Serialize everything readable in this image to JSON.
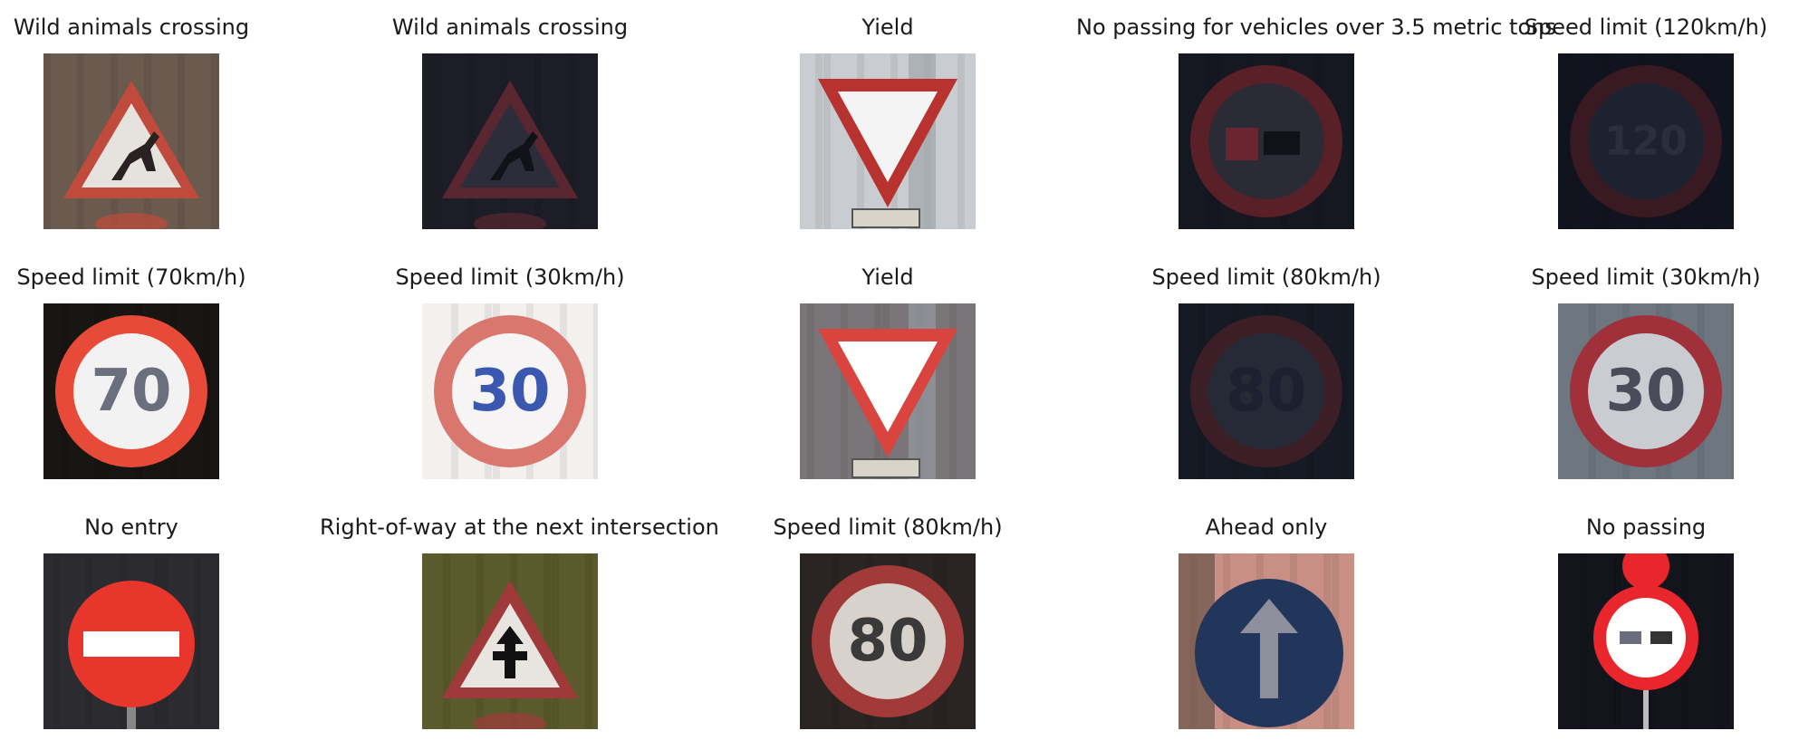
{
  "figure": {
    "cells": [
      {
        "title": "Wild animals crossing",
        "sign": "triangle-deer",
        "bg": "#6b5a4e",
        "sign_color": "#c04a3c",
        "inner_color": "#e6e3df",
        "glyph_color": "#2a2222",
        "dim": 1.0
      },
      {
        "title": "Wild animals crossing",
        "sign": "triangle-deer",
        "bg": "#1c1d26",
        "sign_color": "#5a2630",
        "inner_color": "#2c2d38",
        "glyph_color": "#111217",
        "dim": 1.0
      },
      {
        "title": "Yield",
        "sign": "yield",
        "bg": "#c9ccd0",
        "sign_color": "#b8322f",
        "inner_color": "#f4f4f4",
        "glyph_color": "#000000",
        "dim": 1.0
      },
      {
        "title": "No passing for vehicles over 3.5 metric tons",
        "sign": "round-trucks",
        "bg": "#161821",
        "sign_color": "#5a2028",
        "inner_color": "#2a2b35",
        "glyph_color": "#6b2530",
        "dim": 1.0
      },
      {
        "title": "Speed limit (120km/h)",
        "sign": "round-number",
        "text": "120",
        "bg": "#11141e",
        "sign_color": "#3a1a22",
        "inner_color": "#1d2230",
        "glyph_color": "#2a2f40",
        "dim": 1.0
      },
      {
        "title": "Speed limit (70km/h)",
        "sign": "round-number",
        "text": "70",
        "bg": "#181612",
        "sign_color": "#e84a3a",
        "inner_color": "#f2f2f2",
        "glyph_color": "#6b6e7c",
        "dim": 1.0
      },
      {
        "title": "Speed limit (30km/h)",
        "sign": "round-number",
        "text": "30",
        "bg": "#f3f0ee",
        "sign_color": "#d9766e",
        "inner_color": "#f6f4f4",
        "glyph_color": "#3a58b0",
        "dim": 1.0
      },
      {
        "title": "Yield",
        "sign": "yield",
        "bg": "#7a7578",
        "sign_color": "#d9443f",
        "inner_color": "#ffffff",
        "glyph_color": "#000000",
        "dim": 1.0
      },
      {
        "title": "Speed limit (80km/h)",
        "sign": "round-number",
        "text": "80",
        "bg": "#161a24",
        "sign_color": "#3c1e26",
        "inner_color": "#262a36",
        "glyph_color": "#1c2030",
        "dim": 1.0
      },
      {
        "title": "Speed limit (30km/h)",
        "sign": "round-number",
        "text": "30",
        "bg": "#6e7680",
        "sign_color": "#a0303a",
        "inner_color": "#c9cdd2",
        "glyph_color": "#4a4c5a",
        "dim": 1.0
      },
      {
        "title": "No entry",
        "sign": "no-entry",
        "bg": "#2b2b30",
        "sign_color": "#e8362c",
        "inner_color": "#ffffff",
        "glyph_color": "#ffffff",
        "dim": 1.0
      },
      {
        "title": "Right-of-way at the next intersection",
        "sign": "triangle-row",
        "bg": "#5a5a2c",
        "sign_color": "#a03a3a",
        "inner_color": "#e8e4e0",
        "glyph_color": "#111111",
        "dim": 1.0
      },
      {
        "title": "Speed limit (80km/h)",
        "sign": "round-number",
        "text": "80",
        "bg": "#2a2422",
        "sign_color": "#a33a3a",
        "inner_color": "#d8d2cc",
        "glyph_color": "#3a3a3a",
        "dim": 1.0
      },
      {
        "title": "Ahead only",
        "sign": "ahead-only",
        "bg": "#c98f85",
        "sign_color": "#22355a",
        "inner_color": "#22355a",
        "glyph_color": "#8d8f9c",
        "dim": 1.0
      },
      {
        "title": "No passing",
        "sign": "no-passing",
        "bg": "#14151c",
        "sign_color": "#e8262c",
        "inner_color": "#ffffff",
        "glyph_color": "#6a6d80",
        "dim": 1.0
      }
    ]
  }
}
